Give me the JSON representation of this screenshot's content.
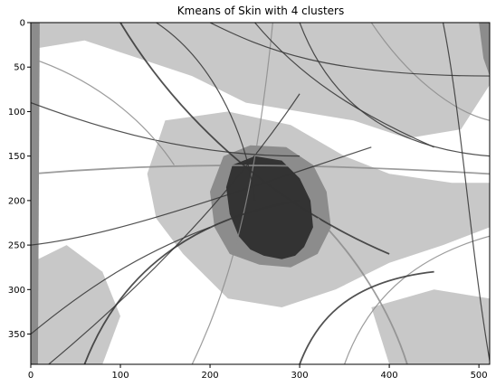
{
  "chart_data": {
    "type": "heatmap",
    "title": "Kmeans of Skin with 4 clusters",
    "xlabel": "",
    "ylabel": "",
    "xlim": [
      0,
      512
    ],
    "ylim": [
      384,
      0
    ],
    "x_ticks": [
      0,
      100,
      200,
      300,
      400,
      500
    ],
    "y_ticks": [
      0,
      50,
      100,
      150,
      200,
      250,
      300,
      350
    ],
    "clusters": 4,
    "cluster_colors": [
      "#ffffff",
      "#c8c8c8",
      "#8c8c8c",
      "#333333"
    ],
    "grid": false
  }
}
